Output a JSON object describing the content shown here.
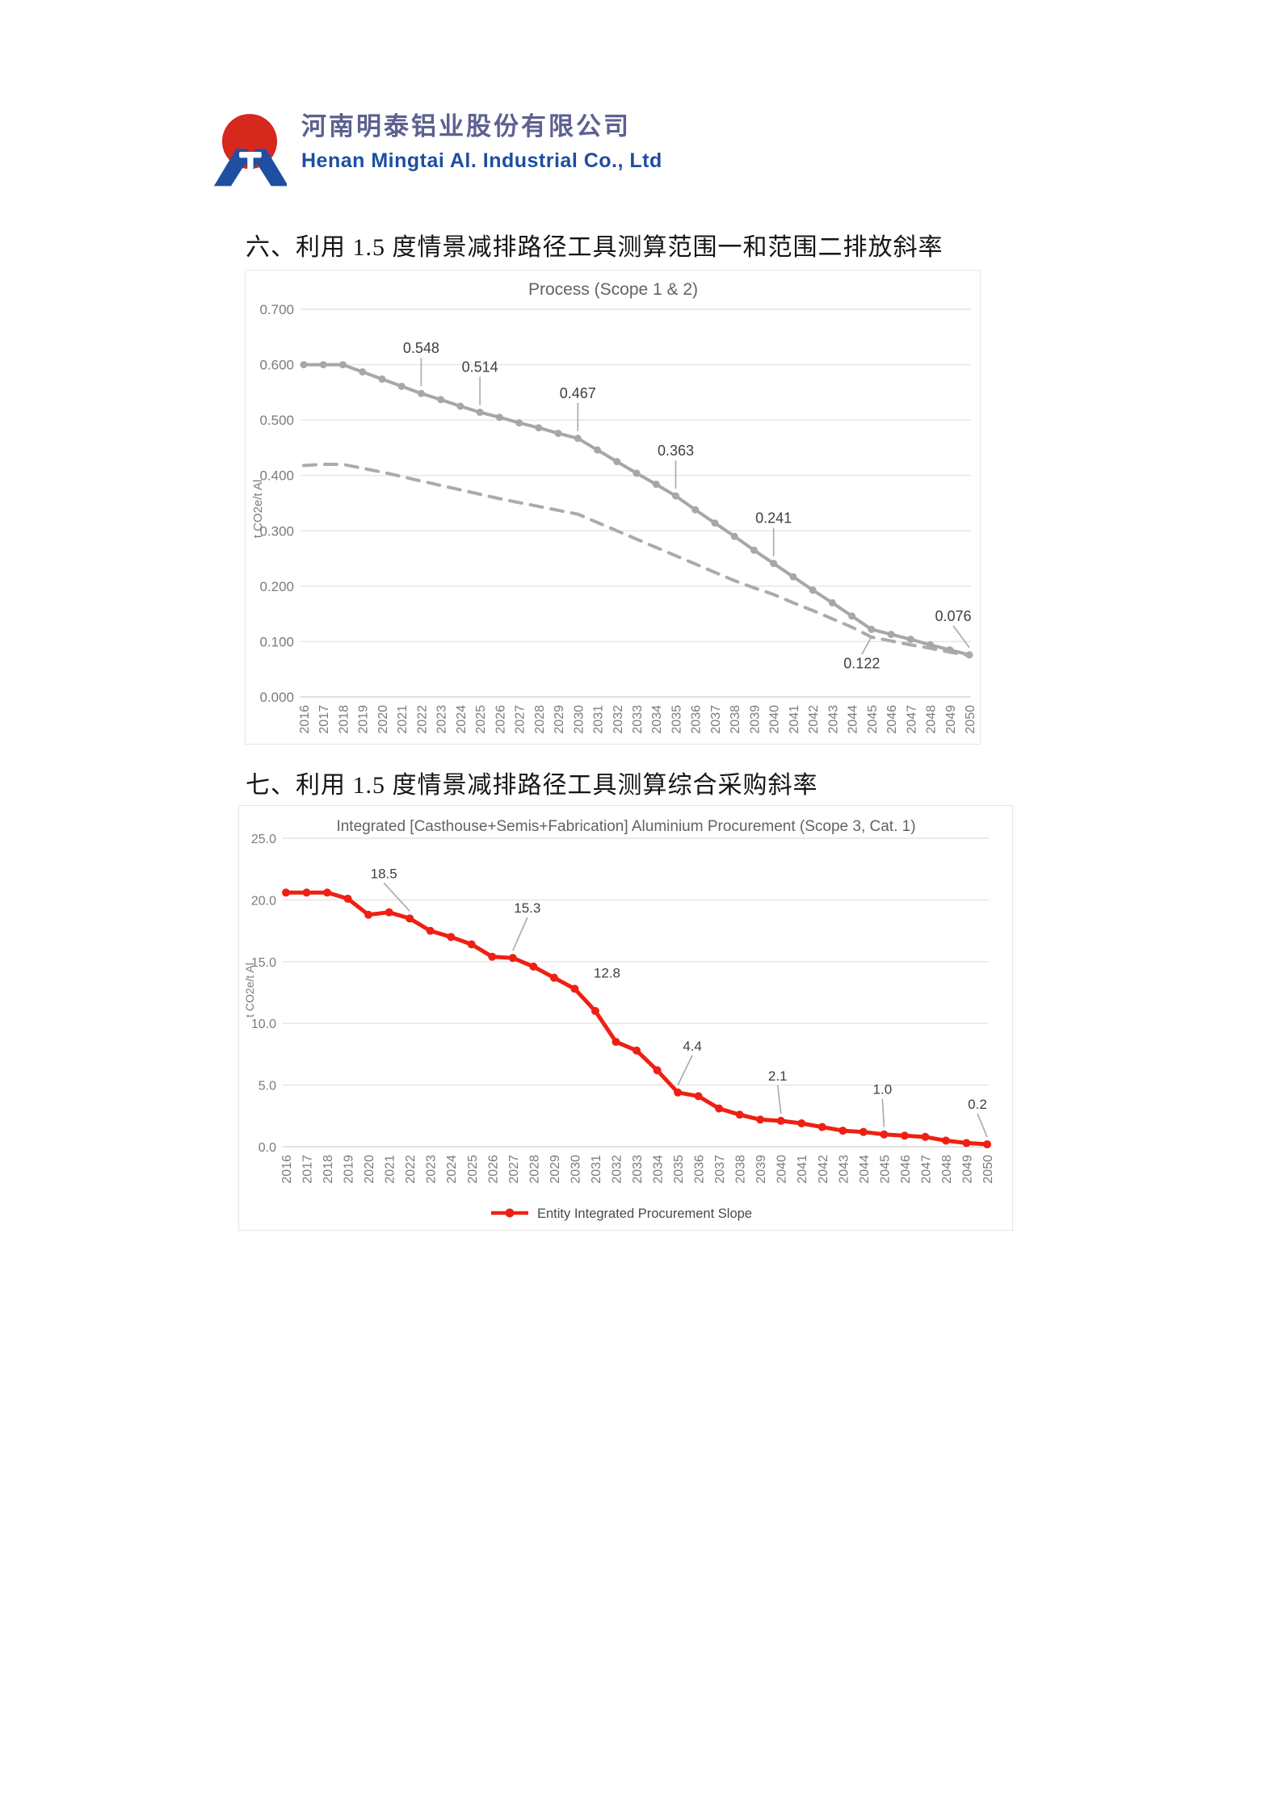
{
  "header": {
    "company_name_zh": "河南明泰铝业股份有限公司",
    "company_name_en": "Henan Mingtai Al. Industrial Co., Ltd",
    "logo_colors": {
      "sun_red": "#d7281d",
      "mark_blue": "#1e4fa0"
    }
  },
  "sections": [
    {
      "heading": "六、利用 1.5 度情景减排路径工具测算范围一和范围二排放斜率"
    },
    {
      "heading": "七、利用 1.5 度情景减排路径工具测算综合采购斜率"
    }
  ],
  "chart_data": [
    {
      "type": "line",
      "title": "Process (Scope 1 & 2)",
      "xlabel": "",
      "ylabel": "t CO2e/t Al",
      "ylim": [
        0.0,
        0.7
      ],
      "ytick_labels": [
        "0.000",
        "0.100",
        "0.200",
        "0.300",
        "0.400",
        "0.500",
        "0.600",
        "0.700"
      ],
      "grid": true,
      "x": [
        2016,
        2017,
        2018,
        2019,
        2020,
        2021,
        2022,
        2023,
        2024,
        2025,
        2026,
        2027,
        2028,
        2029,
        2030,
        2031,
        2032,
        2033,
        2034,
        2035,
        2036,
        2037,
        2038,
        2039,
        2040,
        2041,
        2042,
        2043,
        2044,
        2045,
        2046,
        2047,
        2048,
        2049,
        2050
      ],
      "series": [
        {
          "style": "solid",
          "color": "#a7a7a7",
          "marker": true,
          "values": [
            0.6,
            0.6,
            0.6,
            0.587,
            0.574,
            0.561,
            0.548,
            0.537,
            0.525,
            0.514,
            0.505,
            0.495,
            0.486,
            0.476,
            0.467,
            0.446,
            0.425,
            0.404,
            0.384,
            0.363,
            0.338,
            0.314,
            0.29,
            0.265,
            0.241,
            0.217,
            0.193,
            0.17,
            0.146,
            0.122,
            0.113,
            0.104,
            0.094,
            0.085,
            0.076
          ]
        },
        {
          "style": "dashed",
          "color": "#ababab",
          "marker": false,
          "values": [
            0.418,
            0.42,
            0.42,
            0.413,
            0.406,
            0.398,
            0.39,
            0.382,
            0.374,
            0.366,
            0.358,
            0.351,
            0.344,
            0.337,
            0.33,
            0.315,
            0.3,
            0.285,
            0.27,
            0.255,
            0.24,
            0.225,
            0.21,
            0.197,
            0.185,
            0.17,
            0.156,
            0.141,
            0.126,
            0.108,
            0.101,
            0.094,
            0.088,
            0.081,
            0.075
          ]
        }
      ],
      "point_labels": [
        {
          "x": 2022,
          "text": "0.548"
        },
        {
          "x": 2025,
          "text": "0.514"
        },
        {
          "x": 2030,
          "text": "0.467"
        },
        {
          "x": 2035,
          "text": "0.363"
        },
        {
          "x": 2040,
          "text": "0.241"
        },
        {
          "x": 2045,
          "text": "0.122"
        },
        {
          "x": 2050,
          "text": "0.076"
        }
      ],
      "legend": null
    },
    {
      "type": "line",
      "title": "Integrated [Casthouse+Semis+Fabrication] Aluminium Procurement (Scope 3, Cat. 1)",
      "xlabel": "",
      "ylabel": "t CO2e/t Al",
      "ylim": [
        0.0,
        25.0
      ],
      "ytick_labels": [
        "0.0",
        "5.0",
        "10.0",
        "15.0",
        "20.0",
        "25.0"
      ],
      "grid": true,
      "x": [
        2016,
        2017,
        2018,
        2019,
        2020,
        2021,
        2022,
        2023,
        2024,
        2025,
        2026,
        2027,
        2028,
        2029,
        2030,
        2031,
        2032,
        2033,
        2034,
        2035,
        2036,
        2037,
        2038,
        2039,
        2040,
        2041,
        2042,
        2043,
        2044,
        2045,
        2046,
        2047,
        2048,
        2049,
        2050
      ],
      "series": [
        {
          "style": "solid",
          "color": "#ee2013",
          "marker": true,
          "values": [
            20.6,
            20.6,
            20.6,
            20.1,
            18.8,
            19.0,
            18.5,
            17.5,
            17.0,
            16.4,
            15.4,
            15.3,
            14.6,
            13.7,
            12.8,
            11.0,
            8.5,
            7.8,
            6.2,
            4.4,
            4.1,
            3.1,
            2.6,
            2.2,
            2.1,
            1.9,
            1.6,
            1.3,
            1.2,
            1.0,
            0.9,
            0.8,
            0.5,
            0.3,
            0.2
          ]
        }
      ],
      "point_labels": [
        {
          "x": 2022,
          "text": "18.5"
        },
        {
          "x": 2027,
          "text": "15.3"
        },
        {
          "x": 2030,
          "text": "12.8"
        },
        {
          "x": 2035,
          "text": "4.4"
        },
        {
          "x": 2040,
          "text": "2.1"
        },
        {
          "x": 2045,
          "text": "1.0"
        },
        {
          "x": 2050,
          "text": "0.2"
        }
      ],
      "legend": {
        "label": "Entity Integrated Procurement Slope",
        "position": "bottom"
      }
    }
  ]
}
